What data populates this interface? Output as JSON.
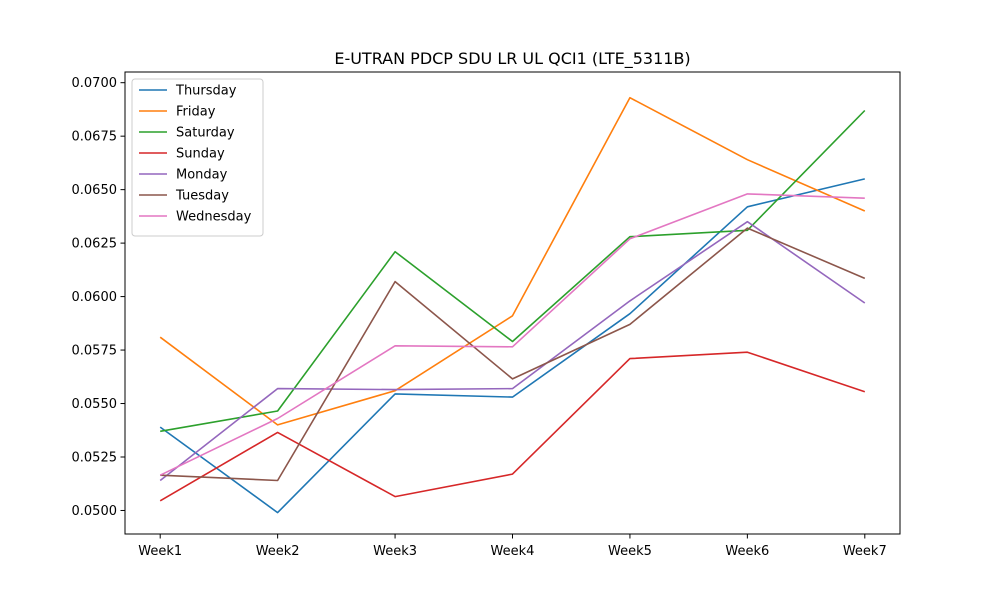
{
  "chart_data": {
    "type": "line",
    "title": "E-UTRAN PDCP SDU LR UL QCI1 (LTE_5311B)",
    "xlabel": "",
    "ylabel": "",
    "categories": [
      "Week1",
      "Week2",
      "Week3",
      "Week4",
      "Week5",
      "Week6",
      "Week7"
    ],
    "ylim": [
      0.0489,
      0.0705
    ],
    "yticks": [
      "0.0500",
      "0.0525",
      "0.0550",
      "0.0575",
      "0.0600",
      "0.0625",
      "0.0650",
      "0.0675",
      "0.0700"
    ],
    "yticks_values": [
      0.05,
      0.0525,
      0.055,
      0.0575,
      0.06,
      0.0625,
      0.065,
      0.0675,
      0.07
    ],
    "grid": false,
    "legend_position": "top-left",
    "series": [
      {
        "name": "Thursday",
        "color": "#1f77b4",
        "values": [
          0.0539,
          0.0499,
          0.05545,
          0.0553,
          0.0592,
          0.0642,
          0.0655
        ]
      },
      {
        "name": "Friday",
        "color": "#ff7f0e",
        "values": [
          0.0581,
          0.054,
          0.0556,
          0.0591,
          0.0693,
          0.0664,
          0.064
        ]
      },
      {
        "name": "Saturday",
        "color": "#2ca02c",
        "values": [
          0.0537,
          0.05465,
          0.0621,
          0.0579,
          0.0628,
          0.0631,
          0.0687
        ]
      },
      {
        "name": "Sunday",
        "color": "#d62728",
        "values": [
          0.05045,
          0.05365,
          0.05065,
          0.0517,
          0.0571,
          0.0574,
          0.05555
        ]
      },
      {
        "name": "Monday",
        "color": "#9467bd",
        "values": [
          0.0514,
          0.0557,
          0.05565,
          0.0557,
          0.0598,
          0.0635,
          0.0597
        ]
      },
      {
        "name": "Tuesday",
        "color": "#8c564b",
        "values": [
          0.05165,
          0.0514,
          0.0607,
          0.05615,
          0.0587,
          0.0632,
          0.06085
        ]
      },
      {
        "name": "Wednesday",
        "color": "#e377c2",
        "values": [
          0.05165,
          0.0543,
          0.0577,
          0.05765,
          0.0627,
          0.0648,
          0.0646
        ]
      }
    ]
  }
}
